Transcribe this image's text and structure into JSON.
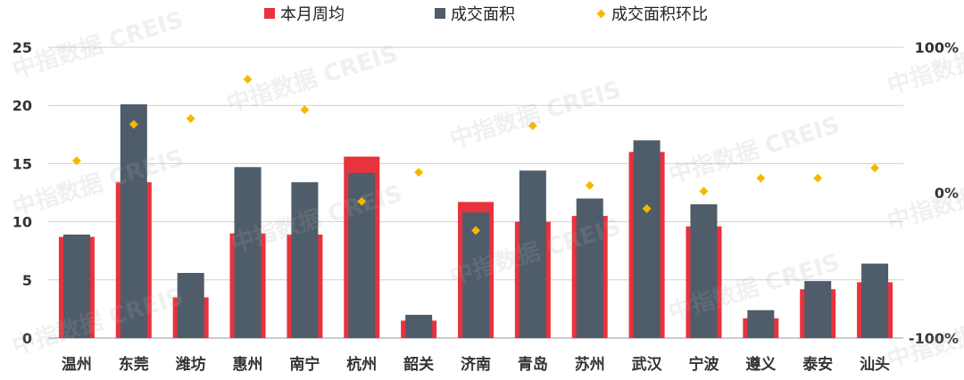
{
  "colors": {
    "avg": "#e8323c",
    "area": "#4f5c69",
    "ratio": "#f5b800",
    "grid": "#cfcfcf",
    "text": "#333333"
  },
  "watermark": "中指数据 CREIS",
  "legend": [
    {
      "key": "avg",
      "label": "本月周均",
      "icon": "square"
    },
    {
      "key": "area",
      "label": "成交面积",
      "icon": "square"
    },
    {
      "key": "ratio",
      "label": "成交面积环比",
      "icon": "diamond"
    }
  ],
  "chart_data": {
    "type": "bar",
    "categories": [
      "温州",
      "东莞",
      "潍坊",
      "惠州",
      "南宁",
      "杭州",
      "韶关",
      "济南",
      "青岛",
      "苏州",
      "武汉",
      "宁波",
      "遵义",
      "泰安",
      "汕头"
    ],
    "series": [
      {
        "name": "本月周均",
        "type": "bar",
        "axis": "left",
        "values": [
          8.7,
          13.4,
          3.5,
          9.0,
          8.9,
          15.6,
          1.5,
          11.7,
          10.0,
          10.5,
          16.0,
          9.6,
          1.7,
          4.2,
          4.8
        ]
      },
      {
        "name": "成交面积",
        "type": "bar",
        "axis": "left",
        "values": [
          8.9,
          20.1,
          5.6,
          14.7,
          13.4,
          14.2,
          2.0,
          10.8,
          14.4,
          12.0,
          17.0,
          11.5,
          2.4,
          4.9,
          6.4
        ]
      },
      {
        "name": "成交面积环比",
        "type": "scatter",
        "axis": "right",
        "values": [
          22,
          47,
          51,
          78,
          57,
          -6,
          14,
          -26,
          46,
          5,
          -11,
          1,
          10,
          10,
          17
        ]
      }
    ],
    "ylim": [
      0,
      25
    ],
    "yticks": [
      0,
      5,
      10,
      15,
      20,
      25
    ],
    "y2lim": [
      -100,
      100
    ],
    "y2ticks": [
      -100,
      0,
      100
    ],
    "y2ticklabels": [
      "-100%",
      "0%",
      "100%"
    ],
    "grid": true,
    "legend_position": "top"
  }
}
